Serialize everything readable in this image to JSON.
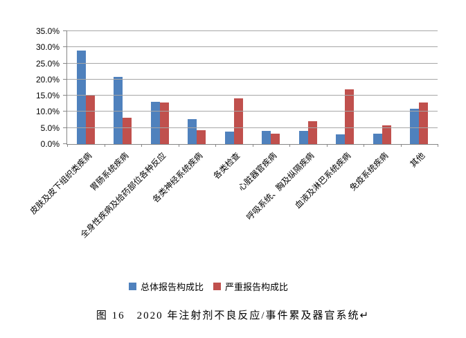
{
  "chart_data": {
    "type": "bar",
    "title": "",
    "categories": [
      "皮肤及皮下组织类疾病",
      "胃肠系统疾病",
      "全身性疾病及给药部位各种反应",
      "各类神经系统疾病",
      "各类检查",
      "心脏器官疾病",
      "呼吸系统、胸及纵隔疾病",
      "血液及淋巴系统疾病",
      "免疫系统疾病",
      "其他"
    ],
    "series": [
      {
        "name": "总体报告构成比",
        "color": "#4F81BD",
        "values": [
          29.0,
          20.8,
          13.1,
          7.8,
          3.9,
          4.0,
          4.0,
          3.0,
          3.2,
          11.0
        ]
      },
      {
        "name": "严重报告构成比",
        "color": "#C0504D",
        "values": [
          15.0,
          8.2,
          12.8,
          4.2,
          14.1,
          3.2,
          7.1,
          16.9,
          5.7,
          12.8
        ]
      }
    ],
    "ylim": [
      0,
      35
    ],
    "y_ticks": [
      "0.0%",
      "5.0%",
      "10.0%",
      "15.0%",
      "20.0%",
      "25.0%",
      "30.0%",
      "35.0%"
    ],
    "grid": true,
    "legend_position": "bottom",
    "axis_color": "#868686",
    "gridline_color": "#A6A6A6"
  },
  "caption": {
    "text": "图 16　2020 年注射剂不良反应/事件累及器官系统",
    "mark": "↵"
  }
}
